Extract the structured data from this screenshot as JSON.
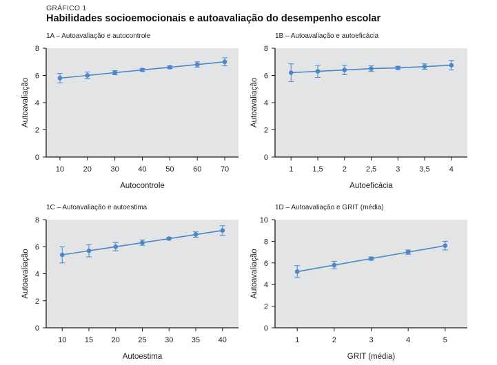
{
  "figure": {
    "eyebrow": "GRÁFICO 1",
    "title": "Habilidades socioemocionais e autoavaliação do desempenho escolar"
  },
  "colors": {
    "series": "#4a86c8",
    "panel_background": "#e3e4e5",
    "axis": "#1a1a1a"
  },
  "chart_data": [
    {
      "type": "line",
      "subtitle": "1A – Autoavaliação e autocontrole",
      "xlabel": "Autocontrole",
      "ylabel": "Autoavaliação",
      "xlim": [
        5,
        75
      ],
      "ylim": [
        0,
        8
      ],
      "xticks": [
        10,
        20,
        30,
        40,
        50,
        60,
        70
      ],
      "xtick_labels": [
        "10",
        "20",
        "30",
        "40",
        "50",
        "60",
        "70"
      ],
      "yticks": [
        0,
        2,
        4,
        6,
        8
      ],
      "grid": false,
      "x": [
        10,
        20,
        30,
        40,
        50,
        60,
        70
      ],
      "y": [
        5.8,
        6.0,
        6.2,
        6.4,
        6.6,
        6.8,
        7.0
      ],
      "err": [
        0.35,
        0.25,
        0.15,
        0.1,
        0.1,
        0.2,
        0.3
      ]
    },
    {
      "type": "line",
      "subtitle": "1B – Autoavaliação e autoeficácia",
      "xlabel": "Autoeficácia",
      "ylabel": "Autoavaliação",
      "xlim": [
        0.7,
        4.3
      ],
      "ylim": [
        0,
        8
      ],
      "xticks": [
        1,
        1.5,
        2,
        2.5,
        3,
        3.5,
        4
      ],
      "xtick_labels": [
        "1",
        "1,5",
        "2",
        "2,5",
        "3",
        "3,5",
        "4"
      ],
      "yticks": [
        0,
        2,
        4,
        6,
        8
      ],
      "grid": false,
      "x": [
        1,
        1.5,
        2,
        2.5,
        3,
        3.5,
        4
      ],
      "y": [
        6.2,
        6.3,
        6.4,
        6.5,
        6.55,
        6.65,
        6.75
      ],
      "err": [
        0.65,
        0.45,
        0.35,
        0.2,
        0.12,
        0.2,
        0.35
      ]
    },
    {
      "type": "line",
      "subtitle": "1C – Autoavaliação e autoestima",
      "xlabel": "Autoestima",
      "ylabel": "Autoavaliação",
      "xlim": [
        7,
        43
      ],
      "ylim": [
        0,
        8
      ],
      "xticks": [
        10,
        15,
        20,
        25,
        30,
        35,
        40
      ],
      "xtick_labels": [
        "10",
        "15",
        "20",
        "25",
        "30",
        "35",
        "40"
      ],
      "yticks": [
        0,
        2,
        4,
        6,
        8
      ],
      "grid": false,
      "x": [
        10,
        15,
        20,
        25,
        30,
        35,
        40
      ],
      "y": [
        5.4,
        5.7,
        6.0,
        6.3,
        6.6,
        6.9,
        7.2
      ],
      "err": [
        0.6,
        0.45,
        0.3,
        0.2,
        0.1,
        0.2,
        0.35
      ]
    },
    {
      "type": "line",
      "subtitle": "1D – Autoavaliação e GRIT (média)",
      "xlabel": "GRIT (média)",
      "ylabel": "Autoavaliação",
      "xlim": [
        0.4,
        5.6
      ],
      "ylim": [
        0,
        10
      ],
      "xticks": [
        1,
        2,
        3,
        4,
        5
      ],
      "xtick_labels": [
        "1",
        "2",
        "3",
        "4",
        "5"
      ],
      "yticks": [
        0,
        2,
        4,
        6,
        8,
        10
      ],
      "grid": false,
      "x": [
        1,
        2,
        3,
        4,
        5
      ],
      "y": [
        5.2,
        5.8,
        6.4,
        7.0,
        7.6
      ],
      "err": [
        0.55,
        0.35,
        0.15,
        0.2,
        0.4
      ]
    }
  ]
}
